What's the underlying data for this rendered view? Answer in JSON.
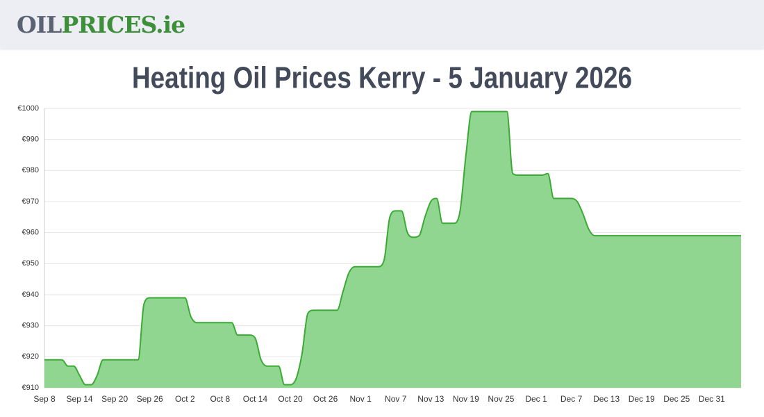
{
  "logo": {
    "part1": "OIL",
    "part2": "PRICES",
    "part3": ".ie"
  },
  "chart_data": {
    "type": "area",
    "title": "Heating Oil Prices Kerry - 5 January 2026",
    "categories": [
      "Sep 8",
      null,
      null,
      null,
      null,
      null,
      "Sep 14",
      null,
      null,
      null,
      null,
      null,
      "Sep 20",
      null,
      null,
      null,
      null,
      null,
      "Sep 26",
      null,
      null,
      null,
      null,
      null,
      "Oct 2",
      null,
      null,
      null,
      null,
      null,
      "Oct 8",
      null,
      null,
      null,
      null,
      null,
      "Oct 14",
      null,
      null,
      null,
      null,
      null,
      "Oct 20",
      null,
      null,
      null,
      null,
      null,
      "Oct 26",
      null,
      null,
      null,
      null,
      null,
      "Nov 1",
      null,
      null,
      null,
      null,
      null,
      "Nov 7",
      null,
      null,
      null,
      null,
      null,
      "Nov 13",
      null,
      null,
      null,
      null,
      null,
      "Nov 19",
      null,
      null,
      null,
      null,
      null,
      "Nov 25",
      null,
      null,
      null,
      null,
      null,
      "Dec 1",
      null,
      null,
      null,
      null,
      null,
      "Dec 7",
      null,
      null,
      null,
      null,
      null,
      "Dec 13",
      null,
      null,
      null,
      null,
      null,
      "Dec 19",
      null,
      null,
      null,
      null,
      null,
      "Dec 25",
      null,
      null,
      null,
      null,
      null,
      "Dec 31",
      null,
      null,
      null,
      null,
      null
    ],
    "values": [
      919,
      919,
      919,
      919,
      917,
      917,
      914,
      911,
      911,
      914,
      919,
      919,
      919,
      919,
      919,
      919,
      919,
      937,
      939,
      939,
      939,
      939,
      939,
      939,
      939,
      933,
      931,
      931,
      931,
      931,
      931,
      931,
      931,
      927,
      927,
      927,
      926,
      919,
      917,
      917,
      917,
      911,
      911,
      913,
      921,
      934,
      935,
      935,
      935,
      935,
      935,
      941,
      947,
      949,
      949,
      949,
      949,
      949,
      951,
      965,
      967,
      967,
      960,
      958.5,
      959,
      965,
      970,
      971,
      963,
      963,
      963,
      967,
      985,
      999,
      999,
      999,
      999,
      999,
      999,
      999,
      979,
      978.5,
      978.5,
      978.5,
      978.5,
      978.5,
      979,
      971,
      971,
      971,
      971,
      970,
      966,
      961,
      959,
      959,
      959,
      959,
      959,
      959,
      959,
      959,
      959,
      959,
      959,
      959,
      959,
      959,
      959,
      959,
      959,
      959,
      959,
      959,
      959,
      959,
      959,
      959,
      959,
      959
    ],
    "color": "#3aaa35",
    "fill": "#90d690",
    "ylim": [
      910,
      1000
    ],
    "yticks": [
      {
        "value": 910,
        "label": "€910"
      },
      {
        "value": 920,
        "label": "€920"
      },
      {
        "value": 930,
        "label": "€930"
      },
      {
        "value": 940,
        "label": "€940"
      },
      {
        "value": 950,
        "label": "€950"
      },
      {
        "value": 960,
        "label": "€960"
      },
      {
        "value": 970,
        "label": "€970"
      },
      {
        "value": 980,
        "label": "€980"
      },
      {
        "value": 990,
        "label": "€990"
      },
      {
        "value": 1000,
        "label": "€1000"
      }
    ],
    "grid": true
  }
}
